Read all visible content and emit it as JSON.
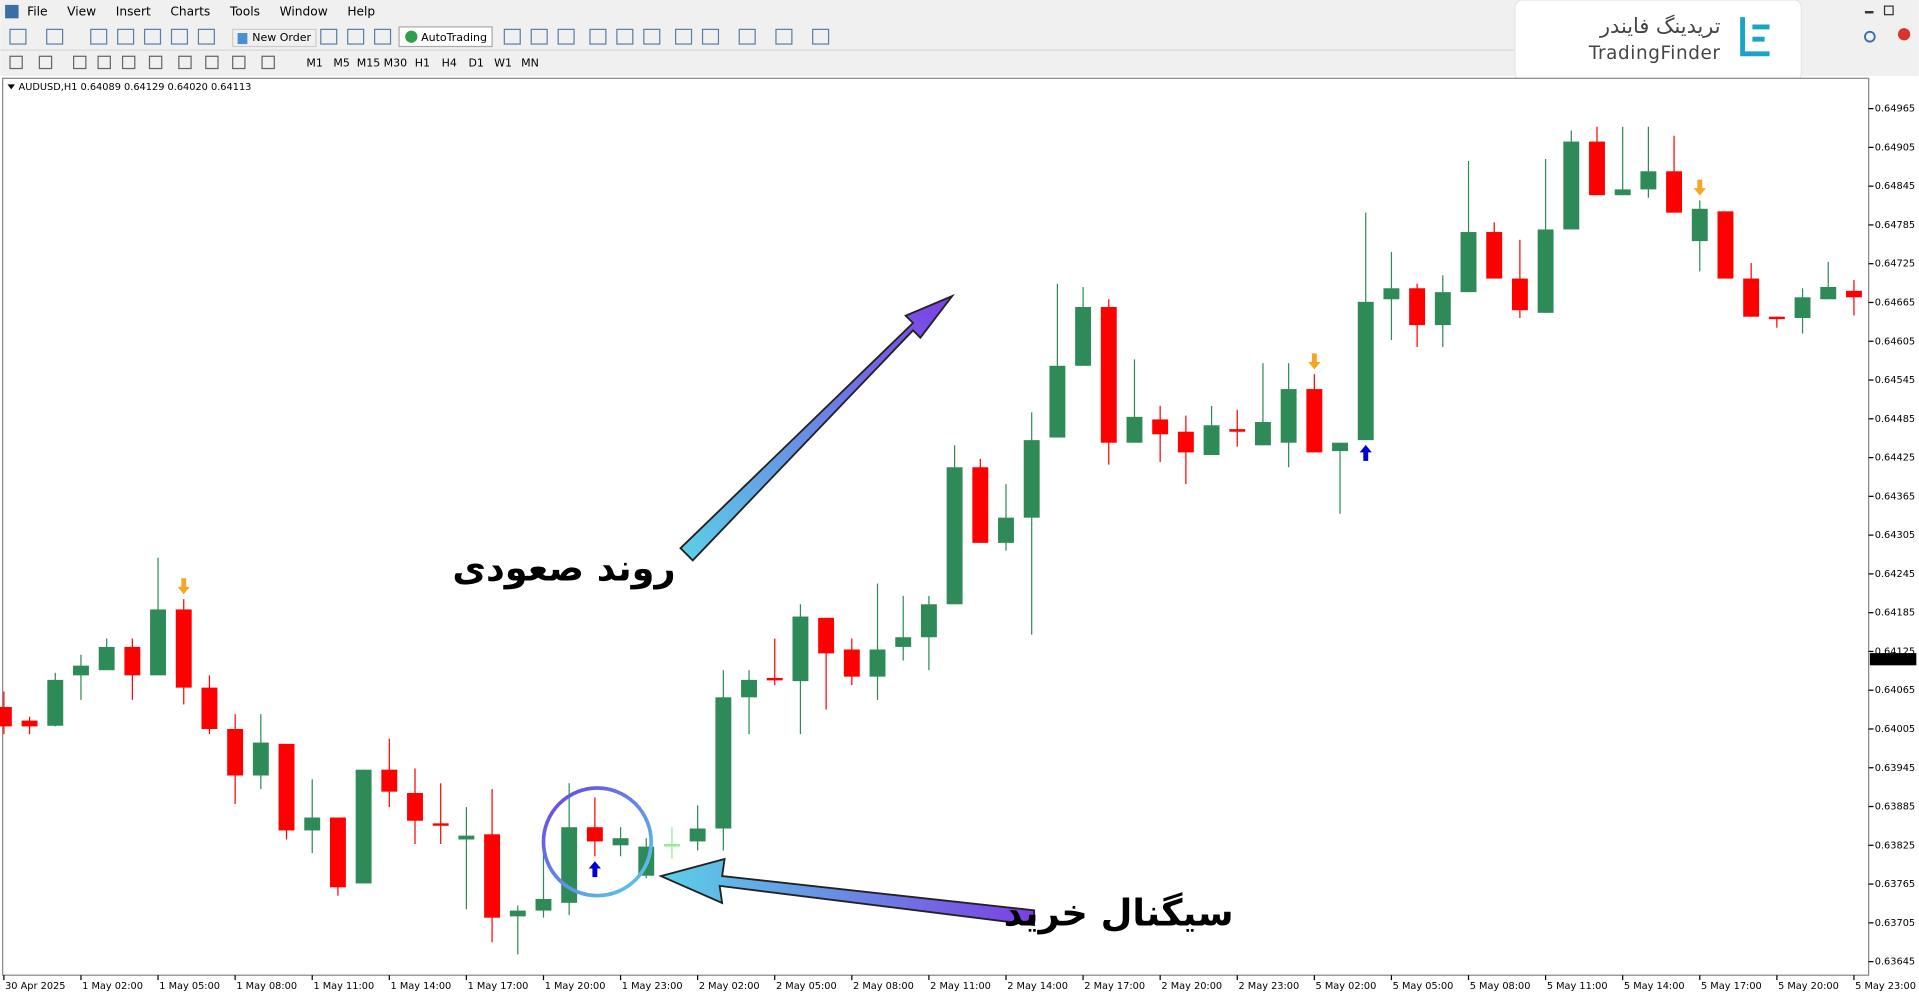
{
  "menu": [
    "File",
    "View",
    "Insert",
    "Charts",
    "Tools",
    "Window",
    "Help"
  ],
  "toolbar": {
    "new_order": "New Order",
    "auto_trading": "AutoTrading",
    "timeframes": [
      "M1",
      "M5",
      "M15",
      "M30",
      "H1",
      "H4",
      "D1",
      "W1",
      "MN"
    ]
  },
  "logo": {
    "persian": "تریدینگ فایندر",
    "latin": "TradingFinder"
  },
  "chart_data": {
    "type": "candlestick",
    "symbol_info": "AUDUSD,H1  0.64089 0.64129 0.64020 0.64113",
    "annotations": [
      "روند صعودی",
      "سیگنال خرید"
    ],
    "categories": [
      "30 Apr 2025",
      null,
      null,
      "1 May 02:00",
      null,
      null,
      "1 May 05:00",
      null,
      null,
      "1 May 08:00",
      null,
      null,
      "1 May 11:00",
      null,
      null,
      "1 May 14:00",
      null,
      null,
      "1 May 17:00",
      null,
      null,
      "1 May 20:00",
      null,
      null,
      "1 May 23:00",
      null,
      null,
      "2 May 02:00",
      null,
      null,
      "2 May 05:00",
      null,
      null,
      "2 May 08:00",
      null,
      null,
      "2 May 11:00",
      null,
      null,
      "2 May 14:00",
      null,
      null,
      "2 May 17:00",
      null,
      null,
      "2 May 20:00",
      null,
      null,
      "2 May 23:00",
      null,
      null,
      "5 May 02:00",
      null,
      null,
      "5 May 05:00",
      null,
      null,
      "5 May 08:00",
      null,
      null,
      "5 May 11:00",
      null,
      null,
      "5 May 14:00",
      null,
      null,
      "5 May 17:00",
      null,
      null,
      "5 May 20:00",
      null,
      null,
      "5 May 23:00"
    ],
    "open": [
      0.64039,
      0.64018,
      0.6401,
      0.64088,
      0.64096,
      0.64132,
      0.64088,
      0.6419,
      0.64069,
      0.64005,
      0.63933,
      0.63982,
      0.63848,
      0.63868,
      0.63766,
      0.63942,
      0.63906,
      0.63859,
      0.63834,
      0.63842,
      0.63715,
      0.63724,
      0.63736,
      0.63853,
      0.63825,
      0.63778,
      0.63827,
      0.63831,
      0.63851,
      0.64054,
      0.64084,
      0.64079,
      0.64177,
      0.64128,
      0.64086,
      0.64132,
      0.64147,
      0.64198,
      0.6441,
      0.64293,
      0.64332,
      0.64456,
      0.64567,
      0.64658,
      0.64448,
      0.64484,
      0.64465,
      0.64429,
      0.64469,
      0.64444,
      0.64448,
      0.64531,
      0.64435,
      0.64452,
      0.6467,
      0.64687,
      0.6463,
      0.64681,
      0.64774,
      0.64702,
      0.64649,
      0.64778,
      0.64914,
      0.64831,
      0.6484,
      0.64868,
      0.6476,
      0.64806,
      0.64702,
      0.64643,
      0.64641,
      0.6467,
      0.64683
    ],
    "high": [
      0.64063,
      0.64024,
      0.64092,
      0.6412,
      0.64145,
      0.64145,
      0.6427,
      0.64206,
      0.64088,
      0.64028,
      0.64028,
      0.63982,
      0.63927,
      0.63868,
      0.63942,
      0.6399,
      0.63944,
      0.63921,
      0.63884,
      0.63912,
      0.63732,
      0.63817,
      0.63921,
      0.63899,
      0.63853,
      0.63836,
      0.63853,
      0.63887,
      0.64096,
      0.64096,
      0.64145,
      0.64198,
      0.64177,
      0.64145,
      0.6423,
      0.64211,
      0.64211,
      0.64444,
      0.64423,
      0.64384,
      0.64495,
      0.64694,
      0.64689,
      0.6467,
      0.64577,
      0.64505,
      0.6449,
      0.64505,
      0.64499,
      0.64571,
      0.64571,
      0.64554,
      0.64448,
      0.64804,
      0.64743,
      0.64694,
      0.64707,
      0.64884,
      0.64789,
      0.64762,
      0.64887,
      0.64931,
      0.64937,
      0.64937,
      0.64937,
      0.64923,
      0.64823,
      0.64806,
      0.64726,
      0.64643,
      0.64687,
      0.64728,
      0.647
    ],
    "low": [
      0.63997,
      0.63997,
      0.64009,
      0.6405,
      0.64096,
      0.6405,
      0.64088,
      0.64043,
      0.63997,
      0.63889,
      0.63912,
      0.63834,
      0.63813,
      0.63747,
      0.63766,
      0.63884,
      0.63827,
      0.63827,
      0.63726,
      0.63675,
      0.63656,
      0.63713,
      0.63717,
      0.63808,
      0.63808,
      0.63774,
      0.63804,
      0.63817,
      0.63817,
      0.63997,
      0.64073,
      0.63997,
      0.64035,
      0.64073,
      0.6405,
      0.64111,
      0.64096,
      0.64198,
      0.64293,
      0.64281,
      0.64151,
      0.64456,
      0.64567,
      0.64414,
      0.64448,
      0.64418,
      0.64384,
      0.64429,
      0.64442,
      0.64444,
      0.6441,
      0.64433,
      0.64338,
      0.64452,
      0.64607,
      0.64596,
      0.64596,
      0.64681,
      0.64702,
      0.64641,
      0.64649,
      0.64778,
      0.64831,
      0.64831,
      0.64827,
      0.64804,
      0.64713,
      0.64702,
      0.64643,
      0.64626,
      0.64617,
      0.6467,
      0.64645
    ],
    "close": [
      0.64009,
      0.64009,
      0.64081,
      0.64103,
      0.64132,
      0.64088,
      0.6419,
      0.64069,
      0.64005,
      0.63933,
      0.63984,
      0.63848,
      0.63868,
      0.6376,
      0.63942,
      0.63908,
      0.63863,
      0.63857,
      0.6384,
      0.63713,
      0.63724,
      0.63742,
      0.63853,
      0.63831,
      0.63836,
      0.63823,
      0.63827,
      0.63851,
      0.64054,
      0.64081,
      0.64081,
      0.64179,
      0.64122,
      0.64086,
      0.64128,
      0.64147,
      0.64198,
      0.6441,
      0.64293,
      0.64332,
      0.64452,
      0.64567,
      0.64658,
      0.64448,
      0.64488,
      0.64461,
      0.64433,
      0.64475,
      0.64465,
      0.6448,
      0.64531,
      0.64433,
      0.64448,
      0.64666,
      0.64687,
      0.6463,
      0.64681,
      0.64774,
      0.64702,
      0.64653,
      0.64778,
      0.64914,
      0.64831,
      0.6484,
      0.64868,
      0.64804,
      0.6481,
      0.64702,
      0.64643,
      0.64641,
      0.64673,
      0.64689,
      0.64673
    ],
    "up_color": "#2e8b57",
    "down_color": "#ff0000",
    "doji_color": "#90ee90",
    "buy_signals": [
      23,
      53
    ],
    "buy_color": "#0000cd",
    "sell_signals": [
      7,
      51,
      66
    ],
    "sell_color": "#f5a623",
    "current_price": 0.64113,
    "ylim": [
      0.63624,
      0.6501
    ],
    "yticks": [
      0.64965,
      0.64905,
      0.64845,
      0.64785,
      0.64725,
      0.64665,
      0.64605,
      0.64545,
      0.64485,
      0.64425,
      0.64365,
      0.64305,
      0.64245,
      0.64185,
      0.64125,
      0.64065,
      0.64005,
      0.63945,
      0.63885,
      0.63825,
      0.63765,
      0.63705,
      0.63645
    ],
    "grid": false
  }
}
